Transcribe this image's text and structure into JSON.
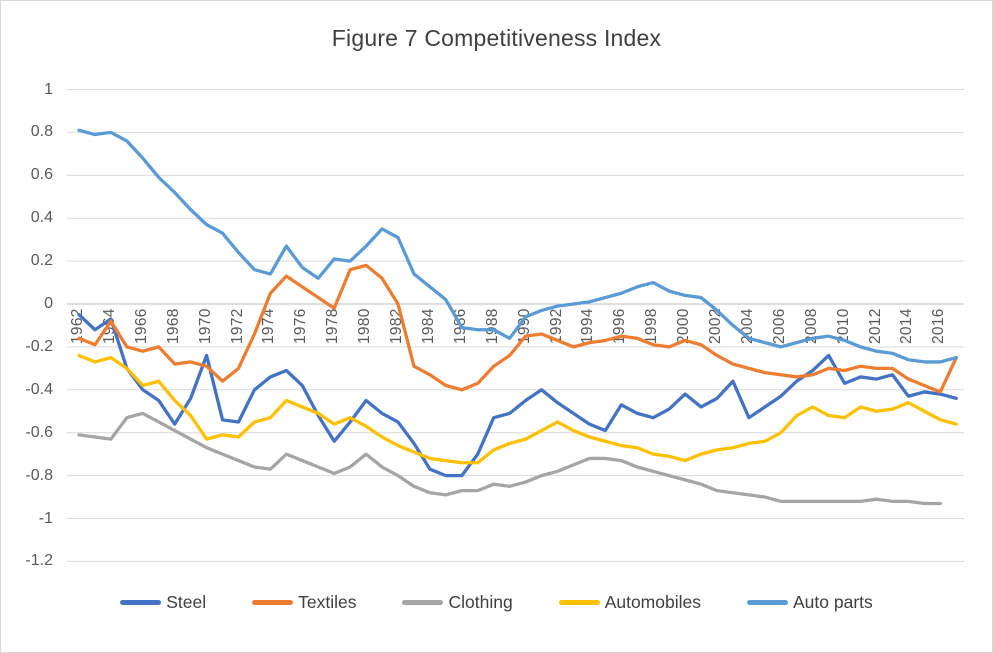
{
  "chart_data": {
    "type": "line",
    "title": "Figure 7 Competitiveness Index",
    "xlabel": "",
    "ylabel": "",
    "ylim": [
      -1.2,
      1
    ],
    "grid": "horizontal",
    "legend_position": "bottom",
    "x": [
      1962,
      1963,
      1964,
      1965,
      1966,
      1967,
      1968,
      1969,
      1970,
      1971,
      1972,
      1973,
      1974,
      1975,
      1976,
      1977,
      1978,
      1979,
      1980,
      1981,
      1982,
      1983,
      1984,
      1985,
      1986,
      1987,
      1988,
      1989,
      1990,
      1991,
      1992,
      1993,
      1994,
      1995,
      1996,
      1997,
      1998,
      1999,
      2000,
      2001,
      2002,
      2003,
      2004,
      2005,
      2006,
      2007,
      2008,
      2009,
      2010,
      2011,
      2012,
      2013,
      2014,
      2015,
      2016,
      2017
    ],
    "x_tick_labels": [
      "1962",
      "1964",
      "1966",
      "1968",
      "1970",
      "1972",
      "1974",
      "1976",
      "1978",
      "1980",
      "1982",
      "1984",
      "1986",
      "1988",
      "1990",
      "1992",
      "1994",
      "1996",
      "1998",
      "2000",
      "2002",
      "2004",
      "2006",
      "2008",
      "2010",
      "2012",
      "2014",
      "2016"
    ],
    "y_ticks": [
      {
        "label": "1",
        "v": 1
      },
      {
        "label": "0.8",
        "v": 0.8
      },
      {
        "label": "0.6",
        "v": 0.6
      },
      {
        "label": "0.4",
        "v": 0.4
      },
      {
        "label": "0.2",
        "v": 0.2
      },
      {
        "label": "0",
        "v": 0
      },
      {
        "label": "-0.2",
        "v": -0.2
      },
      {
        "label": "-0.4",
        "v": -0.4
      },
      {
        "label": "-0.6",
        "v": -0.6
      },
      {
        "label": "-0.8",
        "v": -0.8
      },
      {
        "label": "-1",
        "v": -1
      },
      {
        "label": "-1.2",
        "v": -1.2
      }
    ],
    "series": [
      {
        "name": "Steel",
        "color": "#4472C4",
        "values": [
          -0.05,
          -0.12,
          -0.07,
          -0.3,
          -0.4,
          -0.45,
          -0.56,
          -0.44,
          -0.24,
          -0.54,
          -0.55,
          -0.4,
          -0.34,
          -0.31,
          -0.38,
          -0.52,
          -0.64,
          -0.55,
          -0.45,
          -0.51,
          -0.55,
          -0.65,
          -0.77,
          -0.8,
          -0.8,
          -0.7,
          -0.53,
          -0.51,
          -0.45,
          -0.4,
          -0.46,
          -0.51,
          -0.56,
          -0.59,
          -0.47,
          -0.51,
          -0.53,
          -0.49,
          -0.42,
          -0.48,
          -0.44,
          -0.36,
          -0.53,
          -0.48,
          -0.43,
          -0.36,
          -0.31,
          -0.24,
          -0.37,
          -0.34,
          -0.35,
          -0.33,
          -0.43,
          -0.41,
          -0.42,
          -0.44
        ]
      },
      {
        "name": "Textiles",
        "color": "#ED7D31",
        "values": [
          -0.16,
          -0.19,
          -0.08,
          -0.2,
          -0.22,
          -0.2,
          -0.28,
          -0.27,
          -0.29,
          -0.36,
          -0.3,
          -0.14,
          0.05,
          0.13,
          0.08,
          0.03,
          -0.02,
          0.16,
          0.18,
          0.12,
          0.0,
          -0.29,
          -0.33,
          -0.38,
          -0.4,
          -0.37,
          -0.29,
          -0.24,
          -0.15,
          -0.14,
          -0.17,
          -0.2,
          -0.18,
          -0.17,
          -0.15,
          -0.16,
          -0.19,
          -0.2,
          -0.17,
          -0.19,
          -0.24,
          -0.28,
          -0.3,
          -0.32,
          -0.33,
          -0.34,
          -0.33,
          -0.3,
          -0.31,
          -0.29,
          -0.3,
          -0.3,
          -0.35,
          -0.38,
          -0.41,
          -0.25
        ]
      },
      {
        "name": "Clothing",
        "color": "#A5A5A5",
        "values": [
          -0.61,
          -0.62,
          -0.63,
          -0.53,
          -0.51,
          -0.55,
          -0.59,
          -0.63,
          -0.67,
          -0.7,
          -0.73,
          -0.76,
          -0.77,
          -0.7,
          -0.73,
          -0.76,
          -0.79,
          -0.76,
          -0.7,
          -0.76,
          -0.8,
          -0.85,
          -0.88,
          -0.89,
          -0.87,
          -0.87,
          -0.84,
          -0.85,
          -0.83,
          -0.8,
          -0.78,
          -0.75,
          -0.72,
          -0.72,
          -0.73,
          -0.76,
          -0.78,
          -0.8,
          -0.82,
          -0.84,
          -0.87,
          -0.88,
          -0.89,
          -0.9,
          -0.92,
          -0.92,
          -0.92,
          -0.92,
          -0.92,
          -0.92,
          -0.91,
          -0.92,
          -0.92,
          -0.93,
          -0.93,
          null
        ]
      },
      {
        "name": "Automobiles",
        "color": "#FFC000",
        "values": [
          -0.24,
          -0.27,
          -0.25,
          -0.3,
          -0.38,
          -0.36,
          -0.45,
          -0.52,
          -0.63,
          -0.61,
          -0.62,
          -0.55,
          -0.53,
          -0.45,
          -0.48,
          -0.51,
          -0.56,
          -0.53,
          -0.57,
          -0.62,
          -0.66,
          -0.69,
          -0.72,
          -0.73,
          -0.74,
          -0.74,
          -0.68,
          -0.65,
          -0.63,
          -0.59,
          -0.55,
          -0.59,
          -0.62,
          -0.64,
          -0.66,
          -0.67,
          -0.7,
          -0.71,
          -0.73,
          -0.7,
          -0.68,
          -0.67,
          -0.65,
          -0.64,
          -0.6,
          -0.52,
          -0.48,
          -0.52,
          -0.53,
          -0.48,
          -0.5,
          -0.49,
          -0.46,
          -0.5,
          -0.54,
          -0.56
        ]
      },
      {
        "name": "Auto parts",
        "color": "#5B9BD5",
        "values": [
          0.81,
          0.79,
          0.8,
          0.76,
          0.68,
          0.59,
          0.52,
          0.44,
          0.37,
          0.33,
          0.24,
          0.16,
          0.14,
          0.27,
          0.17,
          0.12,
          0.21,
          0.2,
          0.27,
          0.35,
          0.31,
          0.14,
          0.08,
          0.02,
          -0.11,
          -0.12,
          -0.12,
          -0.16,
          -0.06,
          -0.03,
          -0.01,
          0.0,
          0.01,
          0.03,
          0.05,
          0.08,
          0.1,
          0.06,
          0.04,
          0.03,
          -0.03,
          -0.1,
          -0.16,
          -0.18,
          -0.2,
          -0.18,
          -0.16,
          -0.15,
          -0.17,
          -0.2,
          -0.22,
          -0.23,
          -0.26,
          -0.27,
          -0.27,
          -0.25
        ]
      }
    ]
  },
  "colors": {
    "background": "#FFFFFF",
    "border": "#D9D9D9",
    "grid": "#D9D9D9",
    "axis_line": "#BFBFBF",
    "tick_text": "#595959",
    "title_text": "#404040",
    "legend_text": "#404040"
  }
}
